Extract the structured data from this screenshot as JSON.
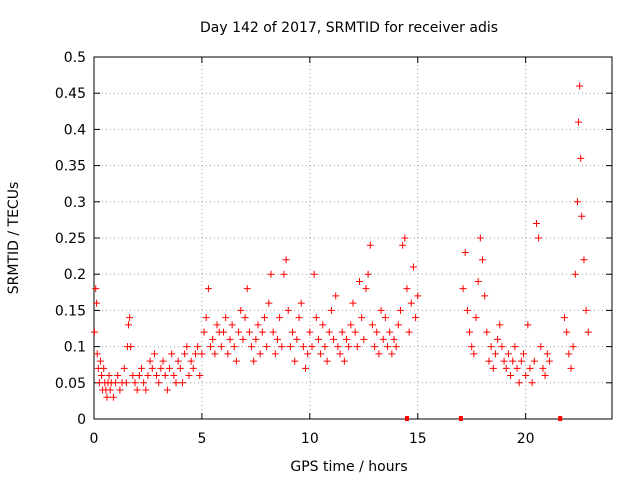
{
  "chart_data": {
    "type": "scatter",
    "title": "Day 142 of 2017, SRMTID for receiver adis",
    "xlabel": "GPS time / hours",
    "ylabel": "SRMTID / TECUs",
    "xlim": [
      0,
      24
    ],
    "ylim": [
      0,
      0.5
    ],
    "xticks": [
      0,
      5,
      10,
      15,
      20
    ],
    "xtick_labels": [
      "0",
      "5",
      "10",
      "15",
      "20"
    ],
    "yticks": [
      0,
      0.05,
      0.1,
      0.15,
      0.2,
      0.25,
      0.3,
      0.35,
      0.4,
      0.45,
      0.5
    ],
    "ytick_labels": [
      "0",
      "0.05",
      "0.1",
      "0.15",
      "0.2",
      "0.25",
      "0.3",
      "0.35",
      "0.4",
      "0.45",
      "0.5"
    ],
    "grid": true,
    "marker": "+",
    "color": "#ff0000",
    "series": [
      {
        "name": "SRMTID",
        "points": [
          [
            0.02,
            0.12
          ],
          [
            0.08,
            0.18
          ],
          [
            0.12,
            0.16
          ],
          [
            0.15,
            0.09
          ],
          [
            0.2,
            0.07
          ],
          [
            0.25,
            0.05
          ],
          [
            0.3,
            0.08
          ],
          [
            0.35,
            0.06
          ],
          [
            0.4,
            0.04
          ],
          [
            0.45,
            0.07
          ],
          [
            0.5,
            0.05
          ],
          [
            0.55,
            0.04
          ],
          [
            0.6,
            0.03
          ],
          [
            0.65,
            0.05
          ],
          [
            0.7,
            0.06
          ],
          [
            0.75,
            0.04
          ],
          [
            0.8,
            0.05
          ],
          [
            0.9,
            0.03
          ],
          [
            1.0,
            0.05
          ],
          [
            1.1,
            0.06
          ],
          [
            1.2,
            0.04
          ],
          [
            1.3,
            0.05
          ],
          [
            1.4,
            0.07
          ],
          [
            1.5,
            0.05
          ],
          [
            1.55,
            0.1
          ],
          [
            1.6,
            0.13
          ],
          [
            1.65,
            0.14
          ],
          [
            1.7,
            0.1
          ],
          [
            1.8,
            0.06
          ],
          [
            1.9,
            0.05
          ],
          [
            2.0,
            0.04
          ],
          [
            2.1,
            0.06
          ],
          [
            2.2,
            0.07
          ],
          [
            2.3,
            0.05
          ],
          [
            2.4,
            0.04
          ],
          [
            2.5,
            0.06
          ],
          [
            2.6,
            0.08
          ],
          [
            2.7,
            0.07
          ],
          [
            2.8,
            0.09
          ],
          [
            2.9,
            0.06
          ],
          [
            3.0,
            0.05
          ],
          [
            3.1,
            0.07
          ],
          [
            3.2,
            0.08
          ],
          [
            3.3,
            0.06
          ],
          [
            3.4,
            0.04
          ],
          [
            3.5,
            0.07
          ],
          [
            3.6,
            0.09
          ],
          [
            3.7,
            0.06
          ],
          [
            3.8,
            0.05
          ],
          [
            3.9,
            0.08
          ],
          [
            4.0,
            0.07
          ],
          [
            4.1,
            0.05
          ],
          [
            4.2,
            0.09
          ],
          [
            4.3,
            0.1
          ],
          [
            4.4,
            0.06
          ],
          [
            4.5,
            0.08
          ],
          [
            4.6,
            0.07
          ],
          [
            4.7,
            0.09
          ],
          [
            4.8,
            0.1
          ],
          [
            4.9,
            0.06
          ],
          [
            5.0,
            0.09
          ],
          [
            5.1,
            0.12
          ],
          [
            5.2,
            0.14
          ],
          [
            5.3,
            0.18
          ],
          [
            5.4,
            0.1
          ],
          [
            5.5,
            0.11
          ],
          [
            5.6,
            0.09
          ],
          [
            5.7,
            0.13
          ],
          [
            5.8,
            0.12
          ],
          [
            5.9,
            0.1
          ],
          [
            6.0,
            0.12
          ],
          [
            6.1,
            0.14
          ],
          [
            6.2,
            0.09
          ],
          [
            6.3,
            0.11
          ],
          [
            6.4,
            0.13
          ],
          [
            6.5,
            0.1
          ],
          [
            6.6,
            0.08
          ],
          [
            6.7,
            0.12
          ],
          [
            6.8,
            0.15
          ],
          [
            6.9,
            0.11
          ],
          [
            7.0,
            0.14
          ],
          [
            7.1,
            0.18
          ],
          [
            7.2,
            0.12
          ],
          [
            7.3,
            0.1
          ],
          [
            7.4,
            0.08
          ],
          [
            7.5,
            0.11
          ],
          [
            7.6,
            0.13
          ],
          [
            7.7,
            0.09
          ],
          [
            7.8,
            0.12
          ],
          [
            7.9,
            0.14
          ],
          [
            8.0,
            0.1
          ],
          [
            8.1,
            0.16
          ],
          [
            8.2,
            0.2
          ],
          [
            8.3,
            0.12
          ],
          [
            8.4,
            0.09
          ],
          [
            8.5,
            0.11
          ],
          [
            8.6,
            0.14
          ],
          [
            8.7,
            0.1
          ],
          [
            8.8,
            0.2
          ],
          [
            8.9,
            0.22
          ],
          [
            9.0,
            0.15
          ],
          [
            9.1,
            0.1
          ],
          [
            9.2,
            0.12
          ],
          [
            9.3,
            0.08
          ],
          [
            9.4,
            0.11
          ],
          [
            9.5,
            0.14
          ],
          [
            9.6,
            0.16
          ],
          [
            9.7,
            0.1
          ],
          [
            9.8,
            0.07
          ],
          [
            9.9,
            0.09
          ],
          [
            10.0,
            0.12
          ],
          [
            10.1,
            0.1
          ],
          [
            10.2,
            0.2
          ],
          [
            10.3,
            0.14
          ],
          [
            10.4,
            0.11
          ],
          [
            10.5,
            0.09
          ],
          [
            10.6,
            0.13
          ],
          [
            10.7,
            0.1
          ],
          [
            10.8,
            0.08
          ],
          [
            10.9,
            0.12
          ],
          [
            11.0,
            0.15
          ],
          [
            11.1,
            0.11
          ],
          [
            11.2,
            0.17
          ],
          [
            11.3,
            0.1
          ],
          [
            11.4,
            0.09
          ],
          [
            11.5,
            0.12
          ],
          [
            11.6,
            0.08
          ],
          [
            11.7,
            0.11
          ],
          [
            11.8,
            0.1
          ],
          [
            11.9,
            0.13
          ],
          [
            12.0,
            0.16
          ],
          [
            12.1,
            0.12
          ],
          [
            12.2,
            0.1
          ],
          [
            12.3,
            0.19
          ],
          [
            12.4,
            0.14
          ],
          [
            12.5,
            0.11
          ],
          [
            12.6,
            0.18
          ],
          [
            12.7,
            0.2
          ],
          [
            12.8,
            0.24
          ],
          [
            12.9,
            0.13
          ],
          [
            13.0,
            0.1
          ],
          [
            13.1,
            0.12
          ],
          [
            13.2,
            0.09
          ],
          [
            13.3,
            0.15
          ],
          [
            13.4,
            0.11
          ],
          [
            13.5,
            0.14
          ],
          [
            13.6,
            0.1
          ],
          [
            13.7,
            0.12
          ],
          [
            13.8,
            0.09
          ],
          [
            13.9,
            0.11
          ],
          [
            14.0,
            0.1
          ],
          [
            14.1,
            0.13
          ],
          [
            14.2,
            0.15
          ],
          [
            14.3,
            0.24
          ],
          [
            14.4,
            0.25
          ],
          [
            14.5,
            0.18
          ],
          [
            14.6,
            0.12
          ],
          [
            14.7,
            0.16
          ],
          [
            14.8,
            0.21
          ],
          [
            14.9,
            0.14
          ],
          [
            15.0,
            0.17
          ],
          [
            17.1,
            0.18
          ],
          [
            17.2,
            0.23
          ],
          [
            17.3,
            0.15
          ],
          [
            17.4,
            0.12
          ],
          [
            17.5,
            0.1
          ],
          [
            17.6,
            0.09
          ],
          [
            17.7,
            0.14
          ],
          [
            17.8,
            0.19
          ],
          [
            17.9,
            0.25
          ],
          [
            18.0,
            0.22
          ],
          [
            18.1,
            0.17
          ],
          [
            18.2,
            0.12
          ],
          [
            18.3,
            0.08
          ],
          [
            18.4,
            0.1
          ],
          [
            18.5,
            0.07
          ],
          [
            18.6,
            0.09
          ],
          [
            18.7,
            0.11
          ],
          [
            18.8,
            0.13
          ],
          [
            18.9,
            0.1
          ],
          [
            19.0,
            0.08
          ],
          [
            19.1,
            0.07
          ],
          [
            19.2,
            0.09
          ],
          [
            19.3,
            0.06
          ],
          [
            19.4,
            0.08
          ],
          [
            19.5,
            0.1
          ],
          [
            19.6,
            0.07
          ],
          [
            19.7,
            0.05
          ],
          [
            19.8,
            0.08
          ],
          [
            19.9,
            0.09
          ],
          [
            20.0,
            0.06
          ],
          [
            20.1,
            0.13
          ],
          [
            20.2,
            0.07
          ],
          [
            20.3,
            0.05
          ],
          [
            20.4,
            0.08
          ],
          [
            20.5,
            0.27
          ],
          [
            20.6,
            0.25
          ],
          [
            20.7,
            0.1
          ],
          [
            20.8,
            0.07
          ],
          [
            20.9,
            0.06
          ],
          [
            21.0,
            0.09
          ],
          [
            21.1,
            0.08
          ],
          [
            21.8,
            0.14
          ],
          [
            21.9,
            0.12
          ],
          [
            22.0,
            0.09
          ],
          [
            22.1,
            0.07
          ],
          [
            22.2,
            0.1
          ],
          [
            22.3,
            0.2
          ],
          [
            22.4,
            0.3
          ],
          [
            22.45,
            0.41
          ],
          [
            22.5,
            0.46
          ],
          [
            22.55,
            0.36
          ],
          [
            22.6,
            0.28
          ],
          [
            22.7,
            0.22
          ],
          [
            22.8,
            0.15
          ],
          [
            22.9,
            0.12
          ]
        ]
      }
    ],
    "gaps_on_axis": [
      14.5,
      17.0,
      21.6
    ]
  }
}
